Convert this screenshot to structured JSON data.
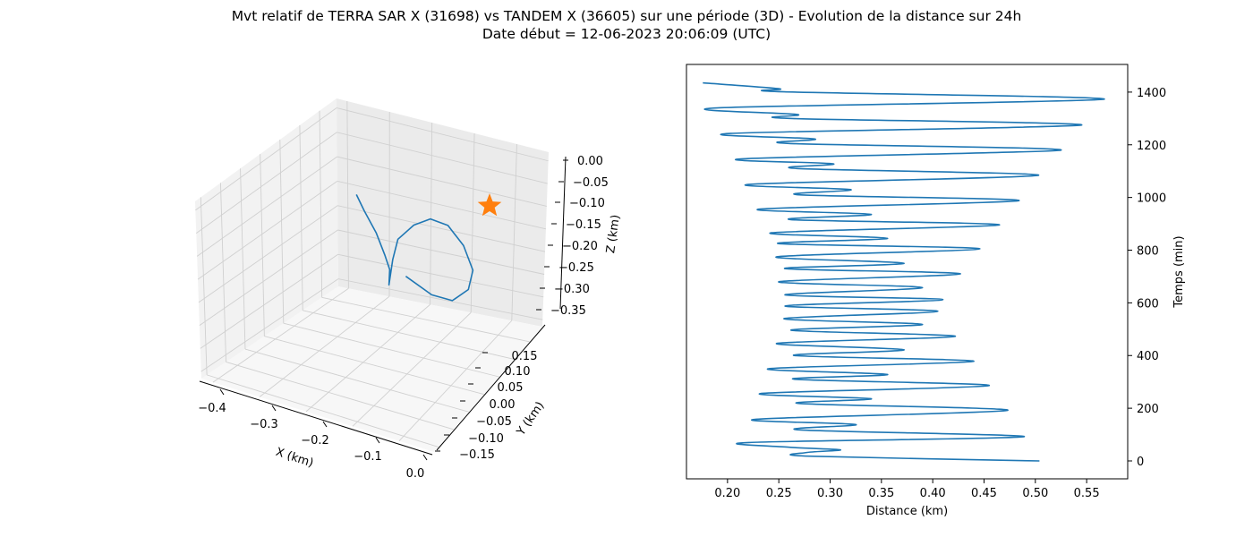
{
  "figure": {
    "title_line1": "Mvt relatif de TERRA SAR X (31698) vs TANDEM X (36605) sur une période (3D) - Evolution de la distance sur 24h",
    "title_line2": "Date début = 12-06-2023 20:06:09 (UTC)"
  },
  "chart_data": [
    {
      "type": "line3d",
      "xlabel": "X (km)",
      "ylabel": "Y (km)",
      "zlabel": "Z (km)",
      "xticks": [
        "−0.4",
        "−0.3",
        "−0.2",
        "−0.1",
        "0.0"
      ],
      "yticks": [
        "−0.15",
        "−0.10",
        "−0.05",
        "0.00",
        "0.05",
        "0.10",
        "0.15"
      ],
      "zticks": [
        "0.00",
        "−0.05",
        "−0.10",
        "−0.15",
        "−0.20",
        "−0.25",
        "−0.30",
        "−0.35"
      ],
      "grid": true,
      "series": [
        {
          "color": "#1f77b4",
          "points_xyz": [
            [
              -0.36,
              0.05,
              -0.12
            ],
            [
              -0.34,
              0.04,
              -0.16
            ],
            [
              -0.31,
              0.02,
              -0.21
            ],
            [
              -0.29,
              -0.01,
              -0.26
            ],
            [
              -0.28,
              -0.03,
              -0.29
            ],
            [
              -0.285,
              -0.05,
              -0.33
            ],
            [
              -0.27,
              -0.02,
              -0.26
            ],
            [
              -0.25,
              0.02,
              -0.21
            ],
            [
              -0.2,
              0.06,
              -0.17
            ],
            [
              -0.15,
              0.09,
              -0.15
            ],
            [
              -0.1,
              0.1,
              -0.16
            ],
            [
              -0.06,
              0.08,
              -0.2
            ],
            [
              -0.04,
              0.04,
              -0.25
            ],
            [
              -0.06,
              -0.01,
              -0.29
            ],
            [
              -0.11,
              -0.05,
              -0.32
            ],
            [
              -0.17,
              -0.07,
              -0.31
            ],
            [
              -0.24,
              -0.06,
              -0.28
            ]
          ]
        },
        {
          "marker": "star",
          "color": "#ff7f0e",
          "points_xyz": [
            [
              0.0,
              0.0,
              0.0
            ]
          ]
        }
      ]
    },
    {
      "type": "line",
      "xlabel": "Distance (km)",
      "ylabel": "Temps (min)",
      "xlim": [
        0.16,
        0.59
      ],
      "ylim": [
        -68,
        1505
      ],
      "xticks": [
        0.2,
        0.25,
        0.3,
        0.35,
        0.4,
        0.45,
        0.5,
        0.55
      ],
      "yticks": [
        0,
        200,
        400,
        600,
        800,
        1000,
        1200,
        1400
      ],
      "series": [
        {
          "color": "#1f77b4",
          "points": [
            [
              0.504,
              0
            ],
            [
              0.28,
              18
            ],
            [
              0.277,
              32
            ],
            [
              0.31,
              42
            ],
            [
              0.26,
              52
            ],
            [
              0.221,
              70
            ],
            [
              0.489,
              92
            ],
            [
              0.27,
              118
            ],
            [
              0.325,
              138
            ],
            [
              0.227,
              158
            ],
            [
              0.473,
              192
            ],
            [
              0.27,
              218
            ],
            [
              0.34,
              236
            ],
            [
              0.233,
              256
            ],
            [
              0.455,
              286
            ],
            [
              0.265,
              310
            ],
            [
              0.356,
              328
            ],
            [
              0.24,
              350
            ],
            [
              0.44,
              378
            ],
            [
              0.265,
              400
            ],
            [
              0.372,
              422
            ],
            [
              0.248,
              446
            ],
            [
              0.422,
              473
            ],
            [
              0.262,
              496
            ],
            [
              0.39,
              518
            ],
            [
              0.255,
              540
            ],
            [
              0.405,
              568
            ],
            [
              0.256,
              588
            ],
            [
              0.41,
              612
            ],
            [
              0.256,
              630
            ],
            [
              0.39,
              658
            ],
            [
              0.25,
              680
            ],
            [
              0.427,
              710
            ],
            [
              0.256,
              730
            ],
            [
              0.372,
              750
            ],
            [
              0.248,
              775
            ],
            [
              0.446,
              805
            ],
            [
              0.25,
              825
            ],
            [
              0.356,
              845
            ],
            [
              0.243,
              866
            ],
            [
              0.465,
              896
            ],
            [
              0.262,
              916
            ],
            [
              0.34,
              936
            ],
            [
              0.232,
              956
            ],
            [
              0.484,
              988
            ],
            [
              0.27,
              1010
            ],
            [
              0.32,
              1030
            ],
            [
              0.222,
              1050
            ],
            [
              0.503,
              1084
            ],
            [
              0.268,
              1110
            ],
            [
              0.303,
              1128
            ],
            [
              0.215,
              1147
            ],
            [
              0.525,
              1180
            ],
            [
              0.26,
              1205
            ],
            [
              0.285,
              1222
            ],
            [
              0.203,
              1243
            ],
            [
              0.545,
              1275
            ],
            [
              0.26,
              1300
            ],
            [
              0.268,
              1315
            ],
            [
              0.19,
              1340
            ],
            [
              0.567,
              1373
            ],
            [
              0.255,
              1401
            ],
            [
              0.25,
              1413
            ],
            [
              0.176,
              1435
            ]
          ]
        }
      ]
    }
  ]
}
